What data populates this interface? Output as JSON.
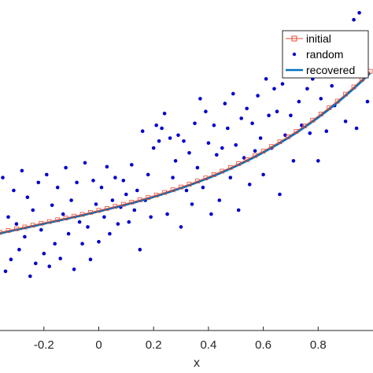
{
  "chart_data": {
    "type": "scatter",
    "xlabel": "x",
    "ylabel": "",
    "title": "",
    "xlim": [
      -0.36,
      1.0
    ],
    "ylim": [
      -0.6,
      2.75
    ],
    "xticks": [
      -0.2,
      0,
      0.2,
      0.4,
      0.6,
      0.8
    ],
    "xtick_labels": [
      "-0.2",
      "0",
      "0.2",
      "0.4",
      "0.6",
      "0.8"
    ],
    "grid": false,
    "legend_position": "top-right",
    "series": [
      {
        "name": "initial",
        "kind": "line-marker",
        "color": "#e34a33",
        "x": [
          -0.36,
          -0.33,
          -0.3,
          -0.27,
          -0.24,
          -0.21,
          -0.18,
          -0.15,
          -0.12,
          -0.09,
          -0.06,
          -0.03,
          0.0,
          0.03,
          0.06,
          0.09,
          0.12,
          0.15,
          0.18,
          0.21,
          0.24,
          0.27,
          0.3,
          0.33,
          0.36,
          0.39,
          0.42,
          0.45,
          0.48,
          0.51,
          0.54,
          0.57,
          0.6,
          0.63,
          0.66,
          0.69,
          0.72,
          0.75,
          0.78,
          0.81,
          0.84,
          0.87,
          0.9,
          0.93,
          0.96,
          0.99
        ],
        "y": [
          0.395,
          0.413,
          0.431,
          0.449,
          0.467,
          0.486,
          0.504,
          0.522,
          0.54,
          0.559,
          0.577,
          0.597,
          0.617,
          0.637,
          0.658,
          0.679,
          0.701,
          0.724,
          0.748,
          0.773,
          0.799,
          0.826,
          0.854,
          0.883,
          0.914,
          0.946,
          0.98,
          1.015,
          1.052,
          1.091,
          1.131,
          1.174,
          1.218,
          1.265,
          1.313,
          1.364,
          1.418,
          1.474,
          1.532,
          1.594,
          1.658,
          1.725,
          1.796,
          1.869,
          1.946,
          2.027
        ]
      },
      {
        "name": "random",
        "kind": "scatter",
        "color": "#0000cc",
        "x": [
          -0.35,
          -0.34,
          -0.33,
          -0.32,
          -0.31,
          -0.3,
          -0.29,
          -0.28,
          -0.27,
          -0.26,
          -0.25,
          -0.24,
          -0.23,
          -0.22,
          -0.21,
          -0.2,
          -0.19,
          -0.18,
          -0.17,
          -0.16,
          -0.15,
          -0.14,
          -0.13,
          -0.12,
          -0.11,
          -0.1,
          -0.09,
          -0.08,
          -0.07,
          -0.06,
          -0.05,
          -0.04,
          -0.03,
          -0.02,
          -0.01,
          0.0,
          0.01,
          0.02,
          0.03,
          0.04,
          0.05,
          0.06,
          0.07,
          0.08,
          0.09,
          0.1,
          0.11,
          0.12,
          0.13,
          0.14,
          0.15,
          0.16,
          0.17,
          0.18,
          0.19,
          0.2,
          0.21,
          0.22,
          0.23,
          0.24,
          0.25,
          0.26,
          0.27,
          0.28,
          0.29,
          0.3,
          0.31,
          0.32,
          0.33,
          0.34,
          0.35,
          0.36,
          0.37,
          0.38,
          0.39,
          0.4,
          0.41,
          0.42,
          0.43,
          0.44,
          0.45,
          0.46,
          0.47,
          0.48,
          0.49,
          0.5,
          0.51,
          0.52,
          0.53,
          0.54,
          0.55,
          0.56,
          0.57,
          0.58,
          0.59,
          0.6,
          0.61,
          0.62,
          0.63,
          0.64,
          0.65,
          0.66,
          0.67,
          0.68,
          0.69,
          0.7,
          0.71,
          0.72,
          0.73,
          0.74,
          0.75,
          0.76,
          0.77,
          0.78,
          0.79,
          0.8,
          0.81,
          0.82,
          0.83,
          0.84,
          0.85,
          0.86,
          0.87,
          0.88,
          0.89,
          0.9,
          0.91,
          0.92,
          0.93,
          0.94,
          0.95,
          0.96,
          0.97,
          0.98
        ],
        "y": [
          0.95,
          0.0,
          0.55,
          0.12,
          0.82,
          0.48,
          0.22,
          1.02,
          0.35,
          0.75,
          -0.05,
          0.62,
          0.08,
          0.9,
          0.42,
          0.18,
          0.98,
          0.05,
          0.67,
          0.28,
          0.85,
          0.13,
          0.58,
          1.05,
          0.38,
          0.72,
          0.02,
          0.9,
          0.5,
          0.28,
          1.1,
          0.45,
          0.12,
          0.92,
          0.68,
          0.3,
          0.85,
          0.55,
          1.06,
          0.38,
          0.72,
          0.95,
          0.48,
          0.65,
          0.92,
          0.78,
          0.5,
          1.08,
          0.62,
          0.82,
          0.22,
          1.42,
          0.72,
          0.98,
          0.55,
          1.25,
          1.48,
          1.32,
          1.45,
          1.6,
          0.58,
          1.35,
          0.95,
          1.12,
          1.38,
          0.45,
          1.32,
          0.82,
          1.2,
          0.68,
          1.5,
          1.05,
          1.75,
          0.85,
          1.62,
          1.3,
          0.58,
          1.48,
          1.18,
          0.72,
          1.25,
          1.7,
          1.45,
          0.95,
          1.8,
          1.28,
          0.62,
          1.55,
          1.15,
          1.65,
          0.88,
          1.5,
          1.22,
          1.78,
          1.35,
          0.98,
          1.95,
          1.58,
          1.25,
          1.85,
          1.62,
          0.78,
          1.9,
          1.38,
          2.05,
          1.58,
          1.12,
          2.12,
          1.72,
          1.48,
          2.28,
          1.85,
          1.4,
          1.95,
          2.15,
          1.12,
          1.75,
          2.0,
          1.42,
          2.22,
          1.88,
          1.68,
          2.38,
          1.98,
          2.18,
          1.52,
          2.05,
          2.38,
          2.55,
          1.45,
          2.62,
          2.12,
          2.35,
          1.72
        ]
      },
      {
        "name": "recovered",
        "kind": "line",
        "color": "#0072bd",
        "x": [
          -0.36,
          -0.33,
          -0.3,
          -0.27,
          -0.24,
          -0.21,
          -0.18,
          -0.15,
          -0.12,
          -0.09,
          -0.06,
          -0.03,
          0.0,
          0.03,
          0.06,
          0.09,
          0.12,
          0.15,
          0.18,
          0.21,
          0.24,
          0.27,
          0.3,
          0.33,
          0.36,
          0.39,
          0.42,
          0.45,
          0.48,
          0.51,
          0.54,
          0.57,
          0.6,
          0.63,
          0.66,
          0.69,
          0.72,
          0.75,
          0.78,
          0.81,
          0.84,
          0.87,
          0.9,
          0.93,
          0.96,
          0.99
        ],
        "y": [
          0.385,
          0.403,
          0.421,
          0.439,
          0.457,
          0.476,
          0.494,
          0.512,
          0.53,
          0.549,
          0.567,
          0.587,
          0.607,
          0.627,
          0.648,
          0.669,
          0.69,
          0.713,
          0.737,
          0.762,
          0.788,
          0.815,
          0.843,
          0.872,
          0.903,
          0.935,
          0.968,
          1.003,
          1.04,
          1.079,
          1.119,
          1.161,
          1.206,
          1.252,
          1.3,
          1.351,
          1.404,
          1.46,
          1.518,
          1.579,
          1.643,
          1.71,
          1.78,
          1.853,
          1.93,
          2.01
        ]
      }
    ]
  }
}
